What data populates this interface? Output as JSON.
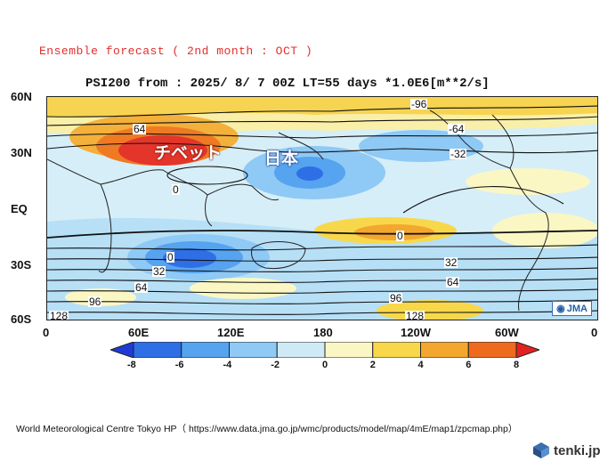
{
  "header": "Ensemble forecast ( 2nd month : OCT )",
  "title": "PSI200 from : 2025/ 8/ 7 00Z LT=55 days  *1.0E6[m**2/s]",
  "lat_labels": [
    "60N",
    "30N",
    "EQ",
    "30S",
    "60S"
  ],
  "lon_labels": [
    "0",
    "60E",
    "120E",
    "180",
    "120W",
    "60W",
    "0"
  ],
  "colorbar": {
    "labels": [
      "-8",
      "-6",
      "-4",
      "-2",
      "0",
      "2",
      "4",
      "6",
      "8"
    ],
    "colors": [
      "#1f3bd6",
      "#2f6fe6",
      "#56a3f0",
      "#8fc9f5",
      "#cfeaf7",
      "#fbf7c4",
      "#f8d84a",
      "#f3a72e",
      "#ee6a1e",
      "#e22222"
    ]
  },
  "contour_labels": [
    "64",
    "-96",
    "-64",
    "-32",
    "0",
    "0",
    "0",
    "32",
    "32",
    "64",
    "64",
    "96",
    "96",
    "128",
    "128"
  ],
  "annotations": {
    "tibet": "チベット",
    "japan": "日本"
  },
  "logo": "JMA",
  "source": "World Meteorological Centre Tokyo HP（ https://www.data.jma.go.jp/wmc/products/model/map/4mE/map1/zpcmap.php）",
  "brand": "tenki.jp"
}
